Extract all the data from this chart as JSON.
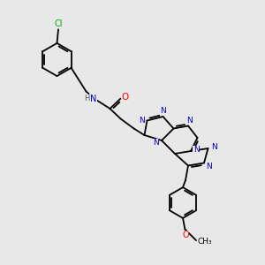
{
  "bg_color": "#e8e8e8",
  "atom_color_N": "#0000cc",
  "atom_color_O": "#ff0000",
  "atom_color_Cl": "#00aa00",
  "atom_color_C": "#000000",
  "atom_color_H": "#555555",
  "bond_color": "#000000",
  "bond_width": 1.3,
  "xlim": [
    0,
    10
  ],
  "ylim": [
    0,
    10
  ]
}
